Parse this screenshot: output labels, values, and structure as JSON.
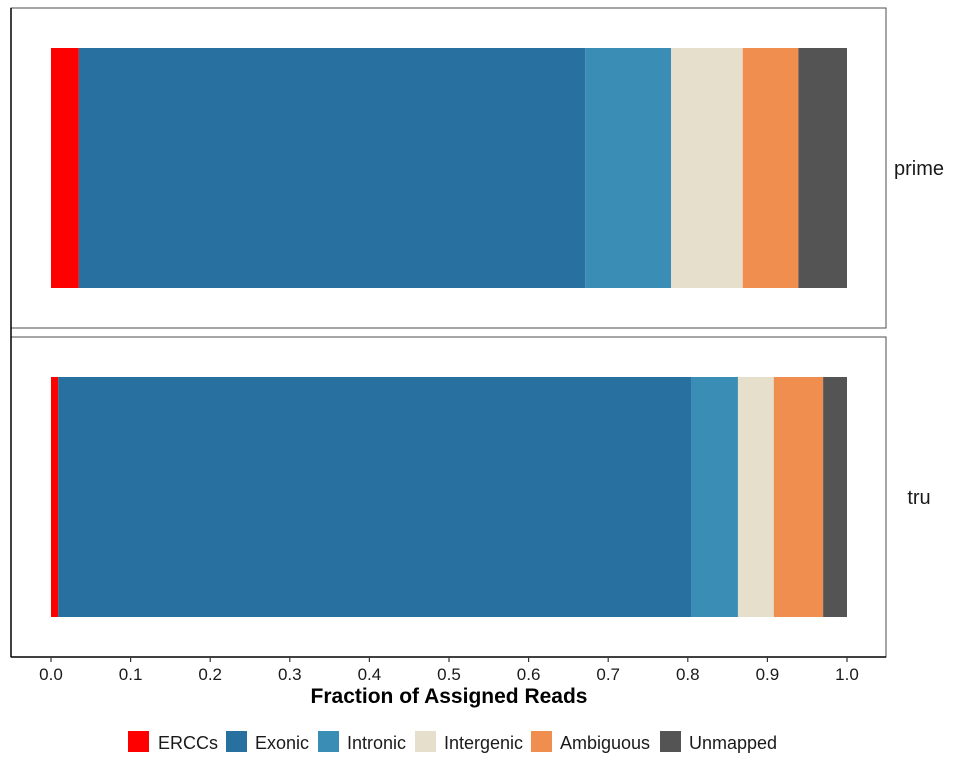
{
  "chart_data": {
    "type": "bar",
    "orientation": "horizontal",
    "stacked": true,
    "facets": [
      "prime",
      "tru"
    ],
    "xlabel": "Fraction of Assigned Reads",
    "xlim": [
      0,
      1.0
    ],
    "xticks": [
      "0.0",
      "0.1",
      "0.2",
      "0.3",
      "0.4",
      "0.5",
      "0.6",
      "0.7",
      "0.8",
      "0.9",
      "1.0"
    ],
    "grid": false,
    "legend_position": "bottom",
    "series": [
      {
        "name": "ERCCs",
        "color": "#ff0000",
        "values": [
          0.035,
          0.009
        ]
      },
      {
        "name": "Exonic",
        "color": "#27709f",
        "values": [
          0.636,
          0.795
        ]
      },
      {
        "name": "Intronic",
        "color": "#3a8eb6",
        "values": [
          0.108,
          0.059
        ]
      },
      {
        "name": "Intergenic",
        "color": "#e5dfcc",
        "values": [
          0.09,
          0.045
        ]
      },
      {
        "name": "Ambiguous",
        "color": "#ef8e4e",
        "values": [
          0.07,
          0.062
        ]
      },
      {
        "name": "Unmapped",
        "color": "#545454",
        "values": [
          0.061,
          0.03
        ]
      }
    ]
  }
}
